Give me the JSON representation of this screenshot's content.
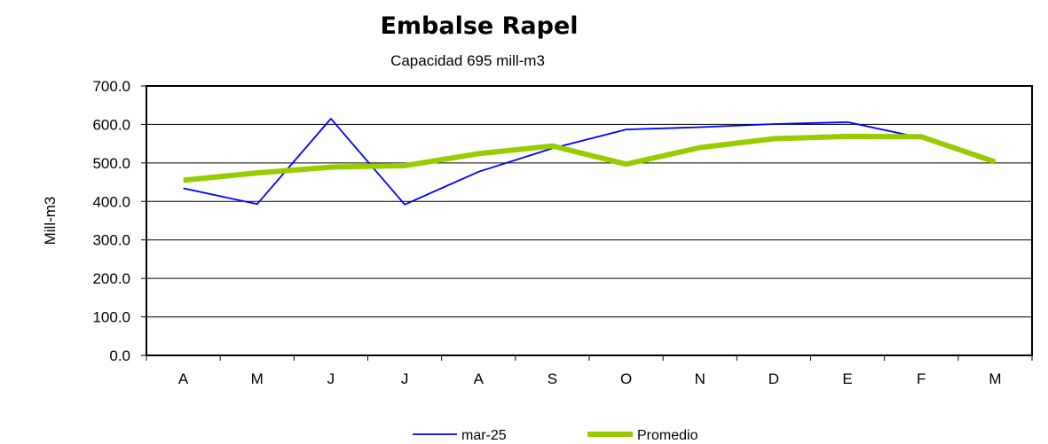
{
  "chart_data": {
    "type": "line",
    "title": "Embalse Rapel",
    "subtitle": "Capacidad 695 mill-m3",
    "xlabel": "",
    "ylabel": "Mill-m3",
    "categories": [
      "A",
      "M",
      "J",
      "J",
      "A",
      "S",
      "O",
      "N",
      "D",
      "E",
      "F",
      "M"
    ],
    "ylim": [
      0,
      700
    ],
    "yticks": [
      0,
      100,
      200,
      300,
      400,
      500,
      600,
      700
    ],
    "ytick_labels": [
      "0.0",
      "100.0",
      "200.0",
      "300.0",
      "400.0",
      "500.0",
      "600.0",
      "700.0"
    ],
    "grid": true,
    "legend_position": "bottom",
    "series": [
      {
        "name": "mar-25",
        "color": "#0000ff",
        "values": [
          434,
          393,
          615,
          392,
          477,
          538,
          587,
          593,
          601,
          606,
          565,
          null
        ]
      },
      {
        "name": "Promedio",
        "color": "#99cc00",
        "values": [
          455,
          474,
          489,
          493,
          524,
          544,
          497,
          540,
          563,
          569,
          568,
          503
        ]
      }
    ]
  }
}
